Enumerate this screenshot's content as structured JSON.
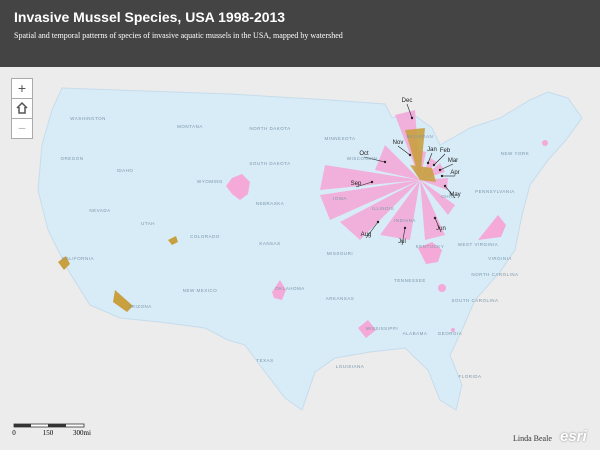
{
  "header": {
    "title": "Invasive Mussel Species, USA 1998-2013",
    "subtitle": "Spatial and temporal patterns of species of invasive aquatic mussels in the USA, mapped by watershed"
  },
  "controls": {
    "zoom_in": "+",
    "zoom_out": "−"
  },
  "month_labels": [
    "Dec",
    "Nov",
    "Oct",
    "Sep",
    "Aug",
    "Jul",
    "Jun",
    "May",
    "Apr",
    "Mar",
    "Feb",
    "Jan"
  ],
  "state_labels": [
    "WASHINGTON",
    "MONTANA",
    "NORTH DAKOTA",
    "MINNESOTA",
    "OREGON",
    "IDAHO",
    "SOUTH DAKOTA",
    "WYOMING",
    "WISCONSIN",
    "MICHIGAN",
    "NEBRASKA",
    "IOWA",
    "NEVADA",
    "UTAH",
    "COLORADO",
    "KANSAS",
    "ILLINOIS",
    "INDIANA",
    "OHIO",
    "CALIFORNIA",
    "MISSOURI",
    "KENTUCKY",
    "WEST VIRGINIA",
    "VIRGINIA",
    "ARIZONA",
    "NEW MEXICO",
    "OKLAHOMA",
    "TENNESSEE",
    "NORTH CAROLINA",
    "ARKANSAS",
    "SOUTH CAROLINA",
    "MISSISSIPPI",
    "ALABAMA",
    "GEORGIA",
    "TEXAS",
    "LOUISIANA",
    "FLORIDA",
    "PENNSYLVANIA",
    "NEW YORK"
  ],
  "scale_bar": {
    "labels": [
      "0",
      "150",
      "300mi"
    ]
  },
  "credit": "Linda Beale",
  "logo": "esri"
}
